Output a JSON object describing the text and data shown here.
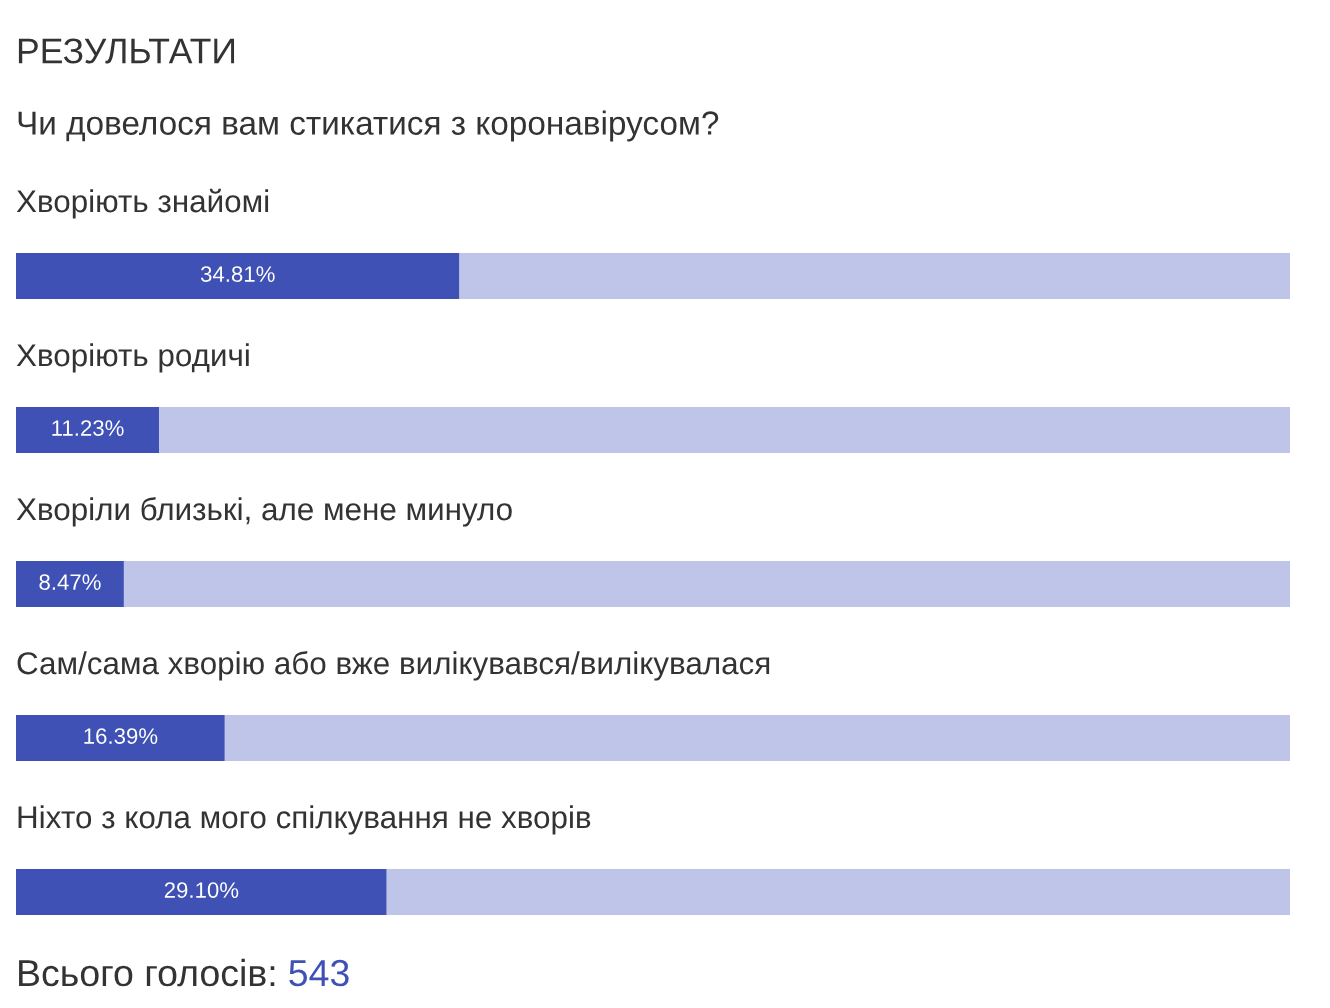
{
  "chart_data": {
    "type": "bar",
    "orientation": "horizontal",
    "stacked": true,
    "title": "РЕЗУЛЬТАТИ",
    "subtitle": "Чи довелося вам стикатися з коронавірусом?",
    "categories": [
      "Хворіють знайомі",
      "Хворіють родичі",
      "Хворіли близькі, але мене минуло",
      "Сам/сама хворію або вже вилікувався/вилікувалася",
      "Ніхто з кола мого спілкування не хворів"
    ],
    "series": [
      {
        "color": "#3f51b5",
        "values": [
          34.81,
          11.23,
          8.47,
          16.39,
          29.1
        ],
        "value_labels": [
          "34.81%",
          "11.23%",
          "8.47%",
          "16.39%",
          "29.10%"
        ]
      },
      {
        "color": "#bfc5e8",
        "values": [
          65.19,
          88.77,
          91.53,
          83.61,
          70.9
        ]
      }
    ],
    "xlim": [
      0,
      100
    ],
    "tick_labels": false,
    "annotations": [
      "Всього голосів: 543"
    ]
  }
}
